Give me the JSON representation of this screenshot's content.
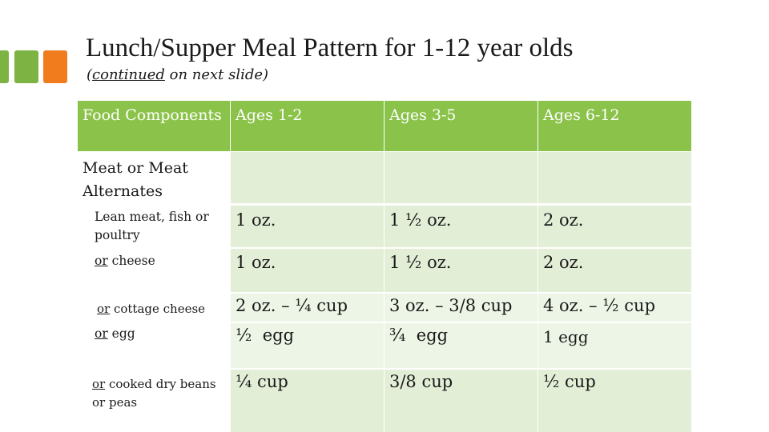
{
  "title": "Lunch/Supper Meal Pattern for 1-12 year olds",
  "subtitle": {
    "prefix": "(",
    "underlined": "continued",
    "rest": " on next slide)"
  },
  "colors": {
    "header_green": "#8bc34a",
    "accent_orange": "#f07c1e",
    "accent_green": "#7cb342"
  },
  "table": {
    "headers": [
      "Food Components",
      "Ages 1-2",
      "Ages 3-5",
      "Ages 6-12"
    ],
    "section_label": "Meat or Meat Alternates",
    "rows": [
      {
        "label_prefix": "",
        "label": "Lean meat, fish or poultry",
        "values": [
          "1 oz.",
          "1 ½ oz.",
          "2 oz."
        ]
      },
      {
        "label_prefix": "or",
        "label": " cheese",
        "values": [
          "1 oz.",
          "1 ½ oz.",
          "2 oz."
        ]
      },
      {
        "label_prefix": "or",
        "label": " cottage cheese",
        "values": [
          "2 oz. – ¼ cup",
          "3 oz. – 3/8 cup",
          "4 oz. – ½ cup"
        ]
      },
      {
        "label_prefix": "or",
        "label": " egg",
        "values": [
          "½  egg",
          "¾  egg",
          "1 egg"
        ]
      },
      {
        "label_prefix": "or",
        "label": " cooked dry beans or peas",
        "values": [
          "¼ cup",
          "3/8 cup",
          "½ cup"
        ]
      }
    ]
  }
}
